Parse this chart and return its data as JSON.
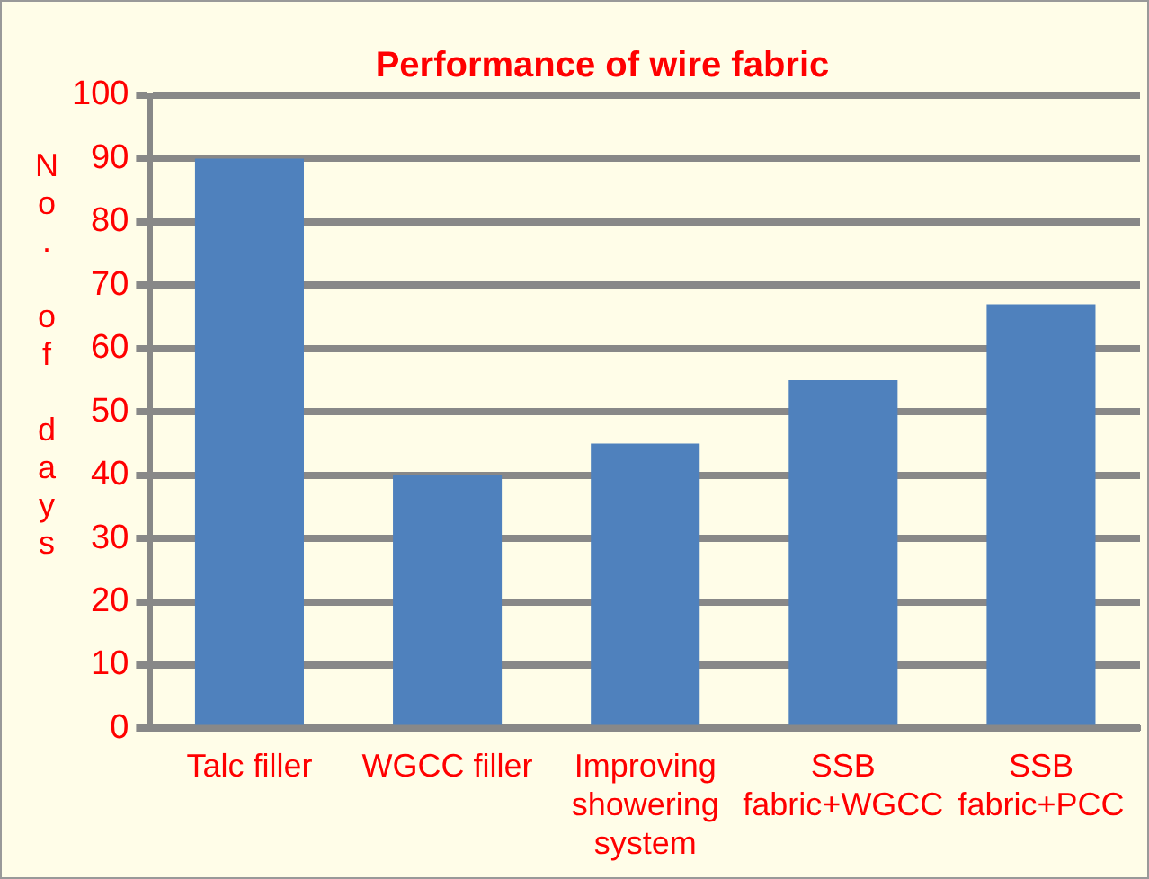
{
  "chart_data": {
    "type": "bar",
    "title": "Performance of wire fabric",
    "ylabel": "No. of days",
    "categories": [
      "Talc filler",
      "WGCC filler",
      "Improving showering system",
      "SSB fabric+WGCC",
      "SSB fabric+PCC"
    ],
    "values": [
      90,
      40,
      45,
      55,
      67
    ],
    "color": "#4f81bd",
    "ylim": [
      0,
      100
    ],
    "yticks": [
      0,
      10,
      20,
      30,
      40,
      50,
      60,
      70,
      80,
      90,
      100
    ],
    "grid": "y"
  }
}
